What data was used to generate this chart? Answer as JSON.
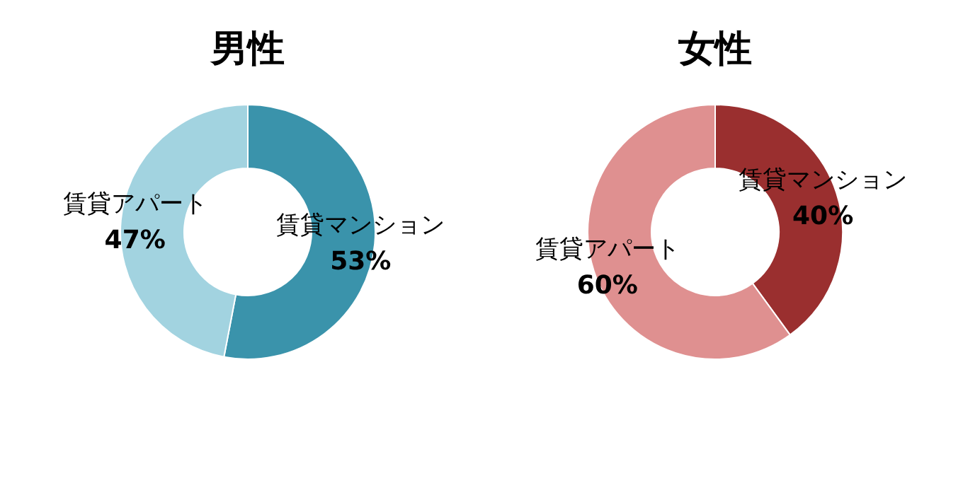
{
  "chart_data": [
    {
      "type": "donut",
      "title": "男性",
      "categories": [
        "賃貸マンション",
        "賃貸アパート"
      ],
      "values": [
        53,
        47
      ],
      "colors": [
        "#3a93ab",
        "#a2d3e0"
      ],
      "value_labels": [
        "53%",
        "47%"
      ]
    },
    {
      "type": "donut",
      "title": "女性",
      "categories": [
        "賃貸マンション",
        "賃貸アパート"
      ],
      "values": [
        40,
        60
      ],
      "colors": [
        "#9a2f2f",
        "#df9090"
      ],
      "value_labels": [
        "40%",
        "60%"
      ]
    }
  ]
}
